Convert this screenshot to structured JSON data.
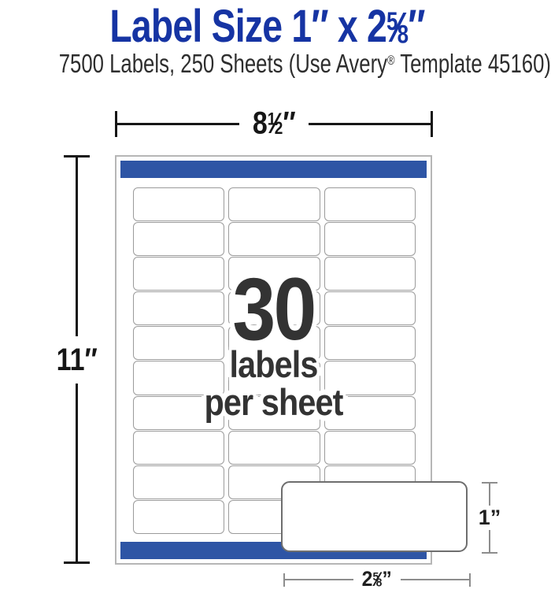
{
  "title": {
    "prefix": "Label Size 1″ x 2",
    "fraction": {
      "numerator": "5",
      "slash": "⁄",
      "denominator": "8"
    },
    "suffix": "″"
  },
  "subtitle": {
    "prefix": "7500 Labels, 250 Sheets (Use Avery",
    "reg_mark": "®",
    "suffix": " Template 45160)"
  },
  "sheet_diagram": {
    "width_dimension": {
      "prefix": "8",
      "fraction": {
        "numerator": "1",
        "slash": "⁄",
        "denominator": "2"
      },
      "unit": "″"
    },
    "height_dimension": {
      "value": "11",
      "unit": "″"
    },
    "grid": {
      "rows": 10,
      "columns": 3,
      "labels_total": 30
    },
    "center_caption": {
      "count": "30",
      "line1": "labels",
      "line2": "per sheet"
    }
  },
  "callout_label": {
    "height_dimension": {
      "value": "1",
      "unit": "”"
    },
    "width_dimension": {
      "prefix": "2",
      "fraction": {
        "numerator": "5",
        "slash": "⁄",
        "denominator": "8"
      },
      "unit": "”"
    }
  },
  "colors": {
    "accent_blue": "#2e55a5",
    "title_blue": "#1634a3"
  }
}
